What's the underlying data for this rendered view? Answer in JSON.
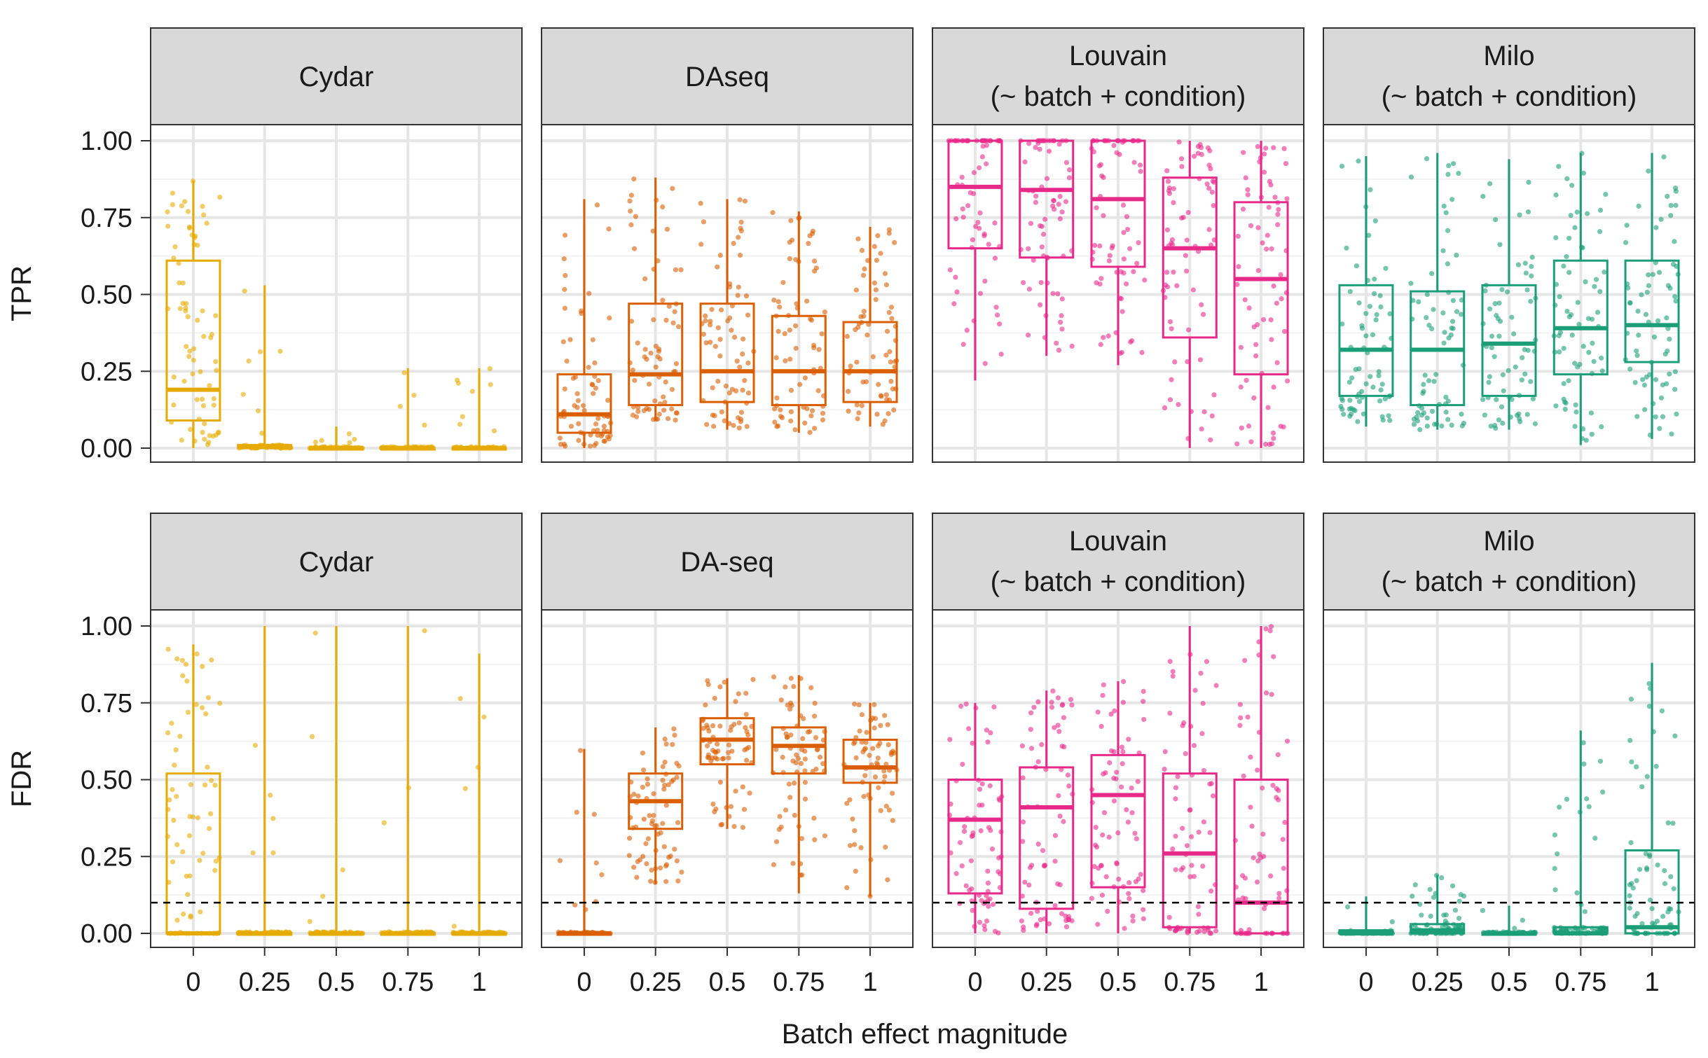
{
  "chart_data": {
    "type": "box",
    "xlabel": "Batch effect magnitude",
    "categories": [
      "0",
      "0.25",
      "0.5",
      "0.75",
      "1"
    ],
    "y_ticks": [
      "0.00",
      "0.25",
      "0.50",
      "0.75",
      "1.00"
    ],
    "ylim": [
      0,
      1
    ],
    "grid": true,
    "fdr_threshold": 0.1,
    "methods": [
      {
        "key": "cydar",
        "color": "#E6AB02"
      },
      {
        "key": "daseq",
        "color": "#D95F02"
      },
      {
        "key": "louvain",
        "color": "#E7298A"
      },
      {
        "key": "milo",
        "color": "#1B9E77"
      }
    ],
    "rows": [
      {
        "ylabel": "TPR",
        "facets": [
          {
            "method": "cydar",
            "title": [
              "Cydar"
            ],
            "boxes": [
              {
                "q1": 0.09,
                "median": 0.19,
                "q3": 0.61,
                "lo": 0.0,
                "hi": 0.87
              },
              {
                "q1": 0.0,
                "median": 0.005,
                "q3": 0.01,
                "lo": 0.0,
                "hi": 0.53
              },
              {
                "q1": 0.0,
                "median": 0.0,
                "q3": 0.0,
                "lo": 0.0,
                "hi": 0.07
              },
              {
                "q1": 0.0,
                "median": 0.0,
                "q3": 0.0,
                "lo": 0.0,
                "hi": 0.26
              },
              {
                "q1": 0.0,
                "median": 0.0,
                "q3": 0.0,
                "lo": 0.0,
                "hi": 0.26
              }
            ]
          },
          {
            "method": "daseq",
            "title": [
              "DAseq"
            ],
            "boxes": [
              {
                "q1": 0.05,
                "median": 0.11,
                "q3": 0.24,
                "lo": 0.0,
                "hi": 0.81
              },
              {
                "q1": 0.14,
                "median": 0.24,
                "q3": 0.47,
                "lo": 0.09,
                "hi": 0.88
              },
              {
                "q1": 0.15,
                "median": 0.25,
                "q3": 0.47,
                "lo": 0.06,
                "hi": 0.81
              },
              {
                "q1": 0.14,
                "median": 0.25,
                "q3": 0.43,
                "lo": 0.05,
                "hi": 0.77
              },
              {
                "q1": 0.15,
                "median": 0.25,
                "q3": 0.41,
                "lo": 0.07,
                "hi": 0.72
              }
            ]
          },
          {
            "method": "louvain",
            "title": [
              "Louvain",
              "(~ batch + condition)"
            ],
            "boxes": [
              {
                "q1": 0.65,
                "median": 0.85,
                "q3": 1.0,
                "lo": 0.22,
                "hi": 1.0
              },
              {
                "q1": 0.62,
                "median": 0.84,
                "q3": 1.0,
                "lo": 0.3,
                "hi": 1.0
              },
              {
                "q1": 0.59,
                "median": 0.81,
                "q3": 1.0,
                "lo": 0.27,
                "hi": 1.0
              },
              {
                "q1": 0.36,
                "median": 0.65,
                "q3": 0.88,
                "lo": 0.0,
                "hi": 1.0
              },
              {
                "q1": 0.24,
                "median": 0.55,
                "q3": 0.8,
                "lo": 0.0,
                "hi": 1.0
              }
            ]
          },
          {
            "method": "milo",
            "title": [
              "Milo",
              "(~ batch + condition)"
            ],
            "boxes": [
              {
                "q1": 0.17,
                "median": 0.32,
                "q3": 0.53,
                "lo": 0.07,
                "hi": 0.95
              },
              {
                "q1": 0.14,
                "median": 0.32,
                "q3": 0.51,
                "lo": 0.06,
                "hi": 0.96
              },
              {
                "q1": 0.17,
                "median": 0.34,
                "q3": 0.53,
                "lo": 0.06,
                "hi": 0.94
              },
              {
                "q1": 0.24,
                "median": 0.39,
                "q3": 0.61,
                "lo": 0.01,
                "hi": 0.96
              },
              {
                "q1": 0.28,
                "median": 0.4,
                "q3": 0.61,
                "lo": 0.03,
                "hi": 0.96
              }
            ]
          }
        ]
      },
      {
        "ylabel": "FDR",
        "facets": [
          {
            "method": "cydar",
            "title": [
              "Cydar"
            ],
            "boxes": [
              {
                "q1": 0.0,
                "median": 0.0,
                "q3": 0.52,
                "lo": 0.0,
                "hi": 0.94
              },
              {
                "q1": 0.0,
                "median": 0.0,
                "q3": 0.0,
                "lo": 0.0,
                "hi": 1.0
              },
              {
                "q1": 0.0,
                "median": 0.0,
                "q3": 0.0,
                "lo": 0.0,
                "hi": 1.0
              },
              {
                "q1": 0.0,
                "median": 0.0,
                "q3": 0.0,
                "lo": 0.0,
                "hi": 1.0
              },
              {
                "q1": 0.0,
                "median": 0.0,
                "q3": 0.0,
                "lo": 0.0,
                "hi": 0.91
              }
            ]
          },
          {
            "method": "daseq",
            "title": [
              "DA-seq"
            ],
            "boxes": [
              {
                "q1": 0.0,
                "median": 0.0,
                "q3": 0.0,
                "lo": 0.0,
                "hi": 0.6
              },
              {
                "q1": 0.34,
                "median": 0.43,
                "q3": 0.52,
                "lo": 0.16,
                "hi": 0.67
              },
              {
                "q1": 0.55,
                "median": 0.63,
                "q3": 0.7,
                "lo": 0.34,
                "hi": 0.83
              },
              {
                "q1": 0.52,
                "median": 0.61,
                "q3": 0.67,
                "lo": 0.13,
                "hi": 0.84
              },
              {
                "q1": 0.49,
                "median": 0.54,
                "q3": 0.63,
                "lo": 0.12,
                "hi": 0.75
              }
            ]
          },
          {
            "method": "louvain",
            "title": [
              "Louvain",
              "(~ batch + condition)"
            ],
            "boxes": [
              {
                "q1": 0.13,
                "median": 0.37,
                "q3": 0.5,
                "lo": 0.0,
                "hi": 0.75
              },
              {
                "q1": 0.08,
                "median": 0.41,
                "q3": 0.54,
                "lo": 0.0,
                "hi": 0.79
              },
              {
                "q1": 0.15,
                "median": 0.45,
                "q3": 0.58,
                "lo": 0.0,
                "hi": 0.82
              },
              {
                "q1": 0.02,
                "median": 0.26,
                "q3": 0.52,
                "lo": 0.0,
                "hi": 1.0
              },
              {
                "q1": 0.0,
                "median": 0.1,
                "q3": 0.5,
                "lo": 0.0,
                "hi": 1.0
              }
            ]
          },
          {
            "method": "milo",
            "title": [
              "Milo",
              "(~ batch + condition)"
            ],
            "boxes": [
              {
                "q1": 0.0,
                "median": 0.0,
                "q3": 0.01,
                "lo": 0.0,
                "hi": 0.12
              },
              {
                "q1": 0.0,
                "median": 0.01,
                "q3": 0.03,
                "lo": 0.0,
                "hi": 0.19
              },
              {
                "q1": 0.0,
                "median": 0.0,
                "q3": 0.0,
                "lo": 0.0,
                "hi": 0.09
              },
              {
                "q1": 0.0,
                "median": 0.0,
                "q3": 0.02,
                "lo": 0.0,
                "hi": 0.66
              },
              {
                "q1": 0.0,
                "median": 0.02,
                "q3": 0.27,
                "lo": 0.0,
                "hi": 0.88
              }
            ]
          }
        ]
      }
    ]
  }
}
